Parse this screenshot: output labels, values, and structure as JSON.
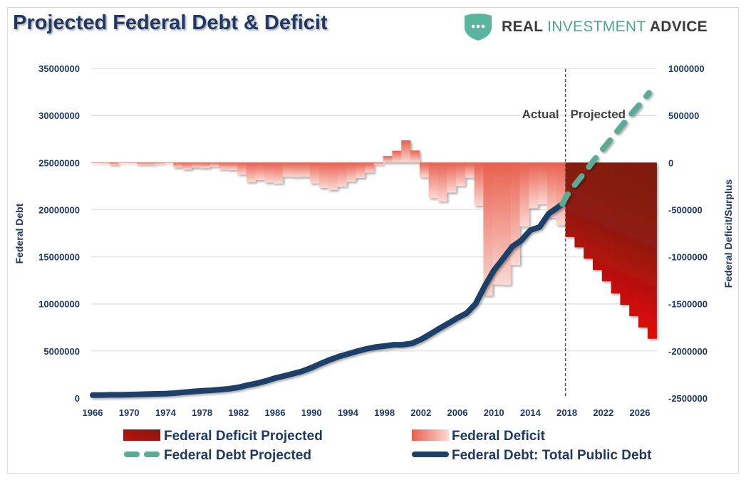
{
  "title": "Projected Federal Debt & Deficit",
  "logo": {
    "text_part1": "REAL ",
    "text_part2": "INVESTMENT",
    "text_part3": " ADVICE"
  },
  "chart_data": {
    "type": "bar+line",
    "title": "Projected Federal Debt & Deficit",
    "ylabel_left": "Federal Debt",
    "ylabel_right": "Federal Deficit/Surplus",
    "ylim_left": [
      0,
      35000000
    ],
    "ylim_right": [
      -2500000,
      1000000
    ],
    "left_ticks": [
      "0",
      "5000000",
      "10000000",
      "15000000",
      "20000000",
      "25000000",
      "30000000",
      "35000000"
    ],
    "right_ticks": [
      "-2500000",
      "-2000000",
      "-1500000",
      "-1000000",
      "-500000",
      "0",
      "500000",
      "1000000"
    ],
    "x_ticks": [
      "1966",
      "1970",
      "1974",
      "1978",
      "1982",
      "1986",
      "1990",
      "1994",
      "1998",
      "2002",
      "2006",
      "2010",
      "2014",
      "2018",
      "2022",
      "2026"
    ],
    "grid": true,
    "legend_position": "bottom",
    "annotations": {
      "actual": "Actual",
      "projected": "Projected",
      "divider_year": 2018
    },
    "colors": {
      "deficit": "#e8604f",
      "deficit_light": "#fbd9d3",
      "deficit_projected_dark": "#7f1a10",
      "deficit_projected_bright": "#ff0000",
      "debt": "#1f4068",
      "debt_projected": "#5aaa96"
    },
    "series": [
      {
        "name": "Federal Deficit Projected",
        "axis": "right",
        "kind": "bar",
        "x": [
          2018,
          2019,
          2020,
          2021,
          2022,
          2023,
          2024,
          2025,
          2026,
          2027
        ],
        "values": [
          -790000,
          -900000,
          -1020000,
          -1140000,
          -1260000,
          -1390000,
          -1510000,
          -1630000,
          -1750000,
          -1870000
        ]
      },
      {
        "name": "Federal Deficit",
        "axis": "right",
        "kind": "bar",
        "x": [
          1966,
          1967,
          1968,
          1969,
          1970,
          1971,
          1972,
          1973,
          1974,
          1975,
          1976,
          1977,
          1978,
          1979,
          1980,
          1981,
          1982,
          1983,
          1984,
          1985,
          1986,
          1987,
          1988,
          1989,
          1990,
          1991,
          1992,
          1993,
          1994,
          1995,
          1996,
          1997,
          1998,
          1999,
          2000,
          2001,
          2002,
          2003,
          2004,
          2005,
          2006,
          2007,
          2008,
          2009,
          2010,
          2011,
          2012,
          2013,
          2014,
          2015,
          2016,
          2017
        ],
        "values": [
          -3700,
          -8600,
          -25200,
          3200,
          -2800,
          -23000,
          -23400,
          -14900,
          -6100,
          -53200,
          -73700,
          -53700,
          -59200,
          -40700,
          -73800,
          -79000,
          -128000,
          -207800,
          -185400,
          -212300,
          -221200,
          -149700,
          -155200,
          -152600,
          -221000,
          -269200,
          -290300,
          -255100,
          -203200,
          -164000,
          -107400,
          -21900,
          69300,
          125600,
          236200,
          128200,
          -157800,
          -377600,
          -412700,
          -318300,
          -248200,
          -160700,
          -458600,
          -1412700,
          -1294400,
          -1299600,
          -1087000,
          -679500,
          -484600,
          -441900,
          -584700,
          -665400
        ]
      },
      {
        "name": "Federal Debt Projected",
        "axis": "left",
        "kind": "line-dashed",
        "x": [
          2017.5,
          2018,
          2019,
          2020,
          2021,
          2022,
          2023,
          2024,
          2025,
          2026,
          2027
        ],
        "values": [
          20600000,
          21500000,
          22800000,
          24000000,
          25300000,
          26500000,
          27700000,
          28900000,
          30100000,
          31200000,
          32400000
        ]
      },
      {
        "name": "Federal Debt: Total Public Debt",
        "axis": "left",
        "kind": "line",
        "x": [
          1966,
          1967,
          1968,
          1969,
          1970,
          1971,
          1972,
          1973,
          1974,
          1975,
          1976,
          1977,
          1978,
          1979,
          1980,
          1981,
          1982,
          1983,
          1984,
          1985,
          1986,
          1987,
          1988,
          1989,
          1990,
          1991,
          1992,
          1993,
          1994,
          1995,
          1996,
          1997,
          1998,
          1999,
          2000,
          2001,
          2002,
          2003,
          2004,
          2005,
          2006,
          2007,
          2008,
          2009,
          2010,
          2011,
          2012,
          2013,
          2014,
          2015,
          2016,
          2017,
          2017.5
        ],
        "values": [
          320000,
          326000,
          348000,
          354000,
          370000,
          398000,
          427000,
          458000,
          475000,
          533000,
          620000,
          699000,
          772000,
          827000,
          908000,
          998000,
          1142000,
          1377000,
          1572000,
          1823000,
          2125000,
          2350000,
          2602000,
          2857000,
          3233000,
          3665000,
          4065000,
          4411000,
          4693000,
          4974000,
          5225000,
          5413000,
          5526000,
          5656000,
          5674000,
          5807000,
          6228000,
          6783000,
          7379000,
          7933000,
          8507000,
          9008000,
          10025000,
          11910000,
          13562000,
          14790000,
          16066000,
          16738000,
          17824000,
          18151000,
          19573000,
          20245000,
          20600000
        ]
      }
    ]
  }
}
